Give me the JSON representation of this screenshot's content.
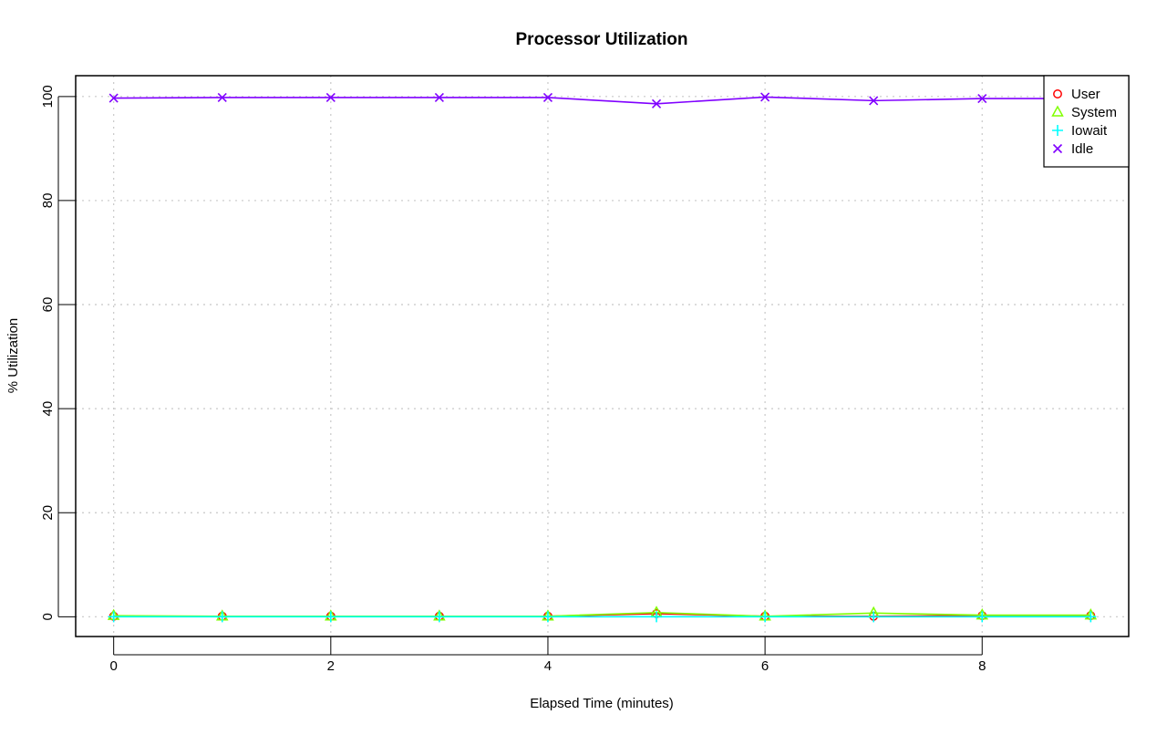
{
  "chart_data": {
    "type": "line",
    "title": "Processor Utilization",
    "xlabel": "Elapsed Time (minutes)",
    "ylabel": "% Utilization",
    "xlim": [
      -0.35,
      9.35
    ],
    "ylim": [
      -3.8,
      104
    ],
    "x_ticks": [
      0,
      2,
      4,
      6,
      8
    ],
    "y_ticks": [
      0,
      20,
      40,
      60,
      80,
      100
    ],
    "grid": true,
    "legend_position": "top-right",
    "x": [
      0,
      1,
      2,
      3,
      4,
      5,
      6,
      7,
      8,
      9
    ],
    "series": [
      {
        "name": "User",
        "color": "#ff0000",
        "marker": "circle",
        "values": [
          0.1,
          0.1,
          0.1,
          0.1,
          0.1,
          0.6,
          0.1,
          0.1,
          0.2,
          0.2
        ]
      },
      {
        "name": "System",
        "color": "#80ff00",
        "marker": "triangle",
        "values": [
          0.2,
          0.1,
          0.1,
          0.1,
          0.1,
          0.8,
          0.1,
          0.7,
          0.3,
          0.3
        ]
      },
      {
        "name": "Iowait",
        "color": "#00ffff",
        "marker": "plus",
        "values": [
          0.0,
          0.0,
          0.0,
          0.0,
          0.0,
          0.0,
          0.0,
          0.0,
          0.0,
          0.0
        ]
      },
      {
        "name": "Idle",
        "color": "#8000ff",
        "marker": "x",
        "values": [
          99.7,
          99.8,
          99.8,
          99.8,
          99.8,
          98.6,
          99.9,
          99.2,
          99.6,
          99.6
        ]
      }
    ]
  }
}
